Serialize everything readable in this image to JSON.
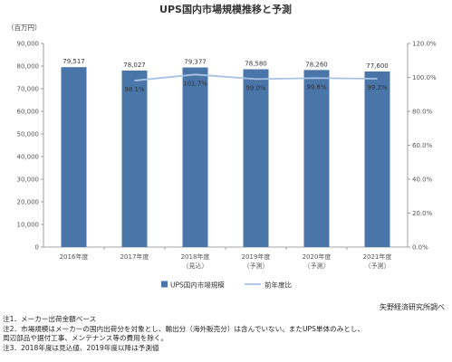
{
  "chart_data": {
    "type": "bar",
    "title": "UPS国内市場規模推移と予測",
    "left_axis_unit": "（百万円）",
    "categories": [
      [
        "2016年度"
      ],
      [
        "2017年度"
      ],
      [
        "2018年度",
        "（見込）"
      ],
      [
        "2019年度",
        "（予測）"
      ],
      [
        "2020年度",
        "（予測）"
      ],
      [
        "2021年度",
        "（予測）"
      ]
    ],
    "series": [
      {
        "name": "UPS国内市場規模",
        "type": "bar",
        "color": "#4a75a8",
        "values": [
          79517,
          78027,
          79377,
          78580,
          78260,
          77600
        ],
        "labels": [
          "79,517",
          "78,027",
          "79,377",
          "78,580",
          "78,260",
          "77,600"
        ]
      },
      {
        "name": "前年度比",
        "type": "line",
        "color": "#a8c2e3",
        "axis": "right",
        "values": [
          null,
          98.1,
          101.7,
          99.0,
          99.6,
          99.2
        ],
        "labels": [
          "",
          "98.1%",
          "101.7%",
          "99.0%",
          "99.6%",
          "99.2%"
        ]
      }
    ],
    "ylim": [
      0,
      90000
    ],
    "y_ticks": [
      "0",
      "10,000",
      "20,000",
      "30,000",
      "40,000",
      "50,000",
      "60,000",
      "70,000",
      "80,000",
      "90,000"
    ],
    "y2lim": [
      0,
      120
    ],
    "y2_ticks": [
      "0.0%",
      "20.0%",
      "40.0%",
      "60.0%",
      "80.0%",
      "100.0%",
      "120.0%"
    ],
    "grid": false,
    "legend_position": "bottom"
  },
  "source": "矢野経済研究所調べ",
  "notes": [
    "注1．メーカー出荷金額ベース",
    "注2．市場規模はメーカーの国内出荷分を対象とし、輸出分（海外販売分）は含んでいない。またUPS単体のみとし、",
    "周辺部品や据付工事、メンテナンス等の費用を除く。",
    "注3．2018年度は見込値、2019年度以降は予測値"
  ]
}
